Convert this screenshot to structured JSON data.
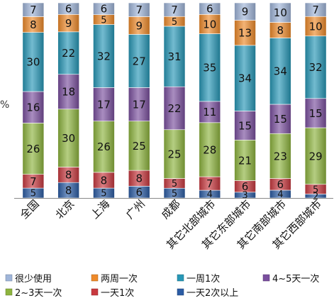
{
  "chart_data": {
    "type": "bar",
    "stacked": true,
    "percent": true,
    "ylabel": "%",
    "categories": [
      "全国",
      "北京",
      "上海",
      "广州",
      "成都",
      "其它北部城市",
      "其它东部城市",
      "其它南部城市",
      "其它西部城市"
    ],
    "series": [
      {
        "name": "一天2次以上",
        "color": "#2b5ca4",
        "values": [
          5,
          8,
          5,
          6,
          5,
          4,
          3,
          4,
          2
        ]
      },
      {
        "name": "一天1次",
        "color": "#c8393f",
        "values": [
          7,
          8,
          8,
          8,
          5,
          7,
          6,
          6,
          5
        ]
      },
      {
        "name": "2~3天一次",
        "color": "#8db43e",
        "values": [
          26,
          30,
          26,
          25,
          25,
          28,
          21,
          23,
          29
        ]
      },
      {
        "name": "4~5天一次",
        "color": "#7a4f9e",
        "values": [
          16,
          18,
          17,
          17,
          22,
          11,
          15,
          15,
          15
        ]
      },
      {
        "name": "一周1次",
        "color": "#2797b6",
        "values": [
          30,
          22,
          32,
          27,
          31,
          35,
          34,
          34,
          32
        ]
      },
      {
        "name": "两周一次",
        "color": "#ee8a2a",
        "values": [
          8,
          9,
          5,
          9,
          5,
          10,
          13,
          8,
          10
        ]
      },
      {
        "name": "很少使用",
        "color": "#9fb5d9",
        "values": [
          7,
          6,
          6,
          7,
          7,
          6,
          9,
          10,
          7
        ]
      }
    ],
    "legend_position": "bottom",
    "legend_order": [
      "很少使用",
      "两周一次",
      "一周1次",
      "4~5天一次",
      "2~3天一次",
      "一天1次",
      "一天2次以上"
    ],
    "grid": false
  }
}
